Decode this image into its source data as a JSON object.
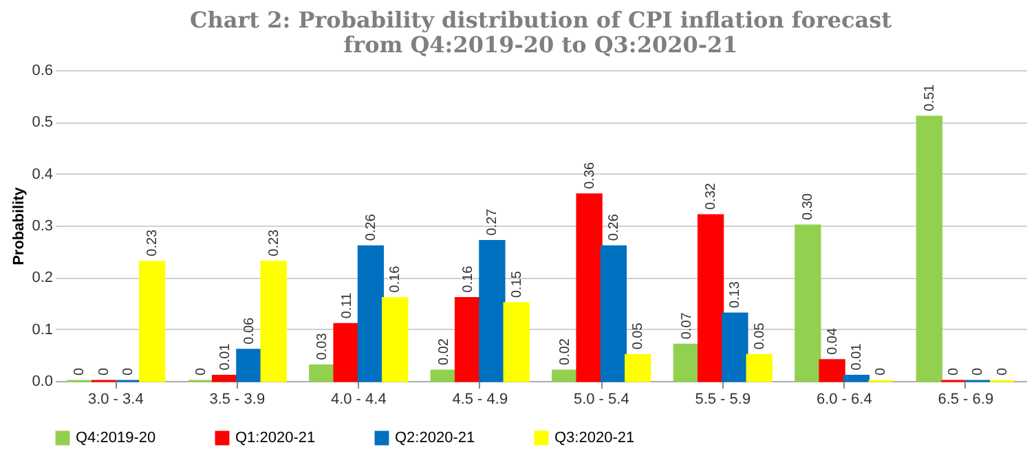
{
  "chart_data": {
    "type": "bar",
    "title": "Chart 2: Probability distribution of  CPI inflation forecast\nfrom Q4:2019-20 to Q3:2020-21",
    "ylabel": "Probability",
    "categories": [
      "3.0 - 3.4",
      "3.5 - 3.9",
      "4.0 - 4.4",
      "4.5 - 4.9",
      "5.0 - 5.4",
      "5.5 - 5.9",
      "6.0 - 6.4",
      "6.5 - 6.9"
    ],
    "series": [
      {
        "name": "Q4:2019-20",
        "color": "#92d050",
        "values": [
          0,
          0,
          0.03,
          0.02,
          0.02,
          0.07,
          0.3,
          0.51
        ],
        "value_labels": [
          "0",
          "0",
          "0.03",
          "0.02",
          "0.02",
          "0.07",
          "0.30",
          "0.51"
        ]
      },
      {
        "name": "Q1:2020-21",
        "color": "#ff0000",
        "values": [
          0,
          0.01,
          0.11,
          0.16,
          0.36,
          0.32,
          0.04,
          0
        ],
        "value_labels": [
          "0",
          "0.01",
          "0.11",
          "0.16",
          "0.36",
          "0.32",
          "0.04",
          "0"
        ]
      },
      {
        "name": "Q2:2020-21",
        "color": "#0070c0",
        "values": [
          0,
          0.06,
          0.26,
          0.27,
          0.26,
          0.13,
          0.01,
          0
        ],
        "value_labels": [
          "0",
          "0.06",
          "0.26",
          "0.27",
          "0.26",
          "0.13",
          "0.01",
          "0"
        ]
      },
      {
        "name": "Q3:2020-21",
        "color": "#ffff00",
        "values": [
          0.23,
          0.23,
          0.16,
          0.15,
          0.05,
          0.05,
          0,
          0
        ],
        "value_labels": [
          "0.23",
          "0.23",
          "0.16",
          "0.15",
          "0.05",
          "0.05",
          "0",
          "0"
        ]
      }
    ],
    "ylim": [
      0,
      0.6
    ],
    "yticks": [
      {
        "value": 0,
        "label": "0.0"
      },
      0.1,
      0.2,
      0.3,
      0.4,
      0.5,
      0.6
    ],
    "grid": "y",
    "legend": "bottom"
  }
}
